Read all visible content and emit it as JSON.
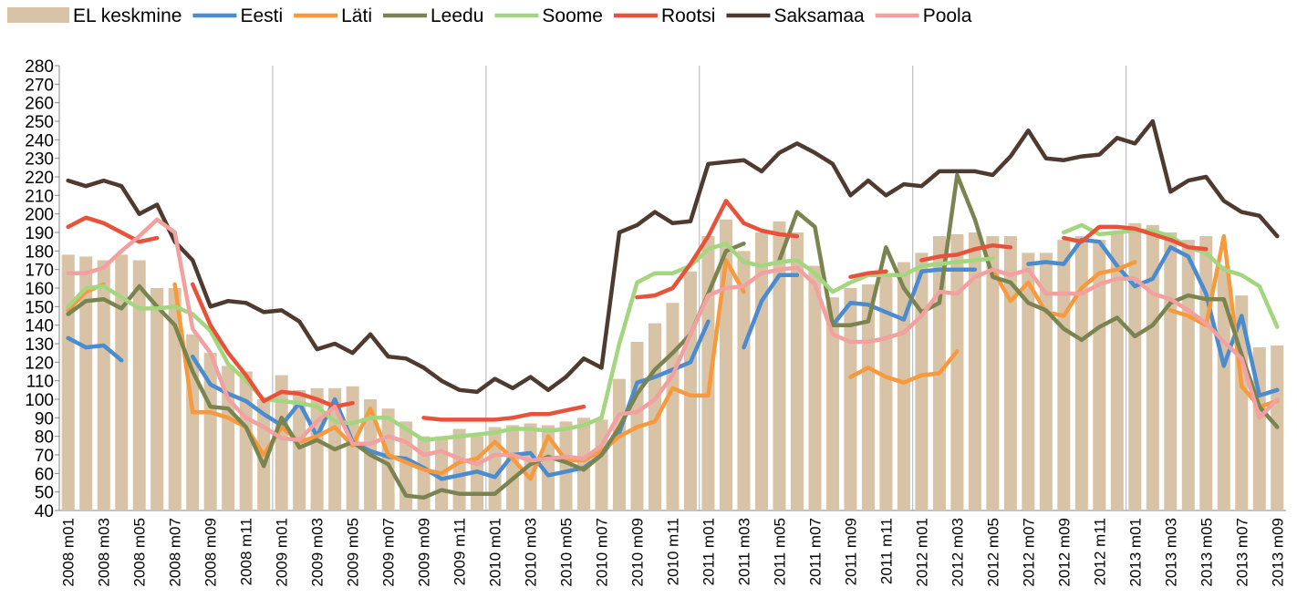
{
  "chart_data": {
    "type": "combo",
    "categories": [
      "2008 m01",
      null,
      "2008 m03",
      null,
      "2008 m05",
      null,
      "2008 m07",
      null,
      "2008 m09",
      null,
      "2008 m11",
      null,
      "2009 m01",
      null,
      "2009 m03",
      null,
      "2009 m05",
      null,
      "2009 m07",
      null,
      "2009 m09",
      null,
      "2009 m11",
      null,
      "2010 m01",
      null,
      "2010 m03",
      null,
      "2010 m05",
      null,
      "2010 m07",
      null,
      "2010 m09",
      null,
      "2010 m11",
      null,
      "2011 m01",
      null,
      "2011 m03",
      null,
      "2011 m05",
      null,
      "2011 m07",
      null,
      "2011 m09",
      null,
      "2011 m11",
      null,
      "2012 m01",
      null,
      "2012 m03",
      null,
      "2012 m05",
      null,
      "2012 m07",
      null,
      "2012 m09",
      null,
      "2012 m11",
      null,
      "2013 m01",
      null,
      "2013 m03",
      null,
      "2013 m05",
      null,
      "2013 m07",
      null,
      "2013 m09"
    ],
    "ylim": [
      40,
      280
    ],
    "yticks": [
      40,
      50,
      60,
      70,
      80,
      90,
      100,
      110,
      120,
      130,
      140,
      150,
      160,
      170,
      180,
      190,
      200,
      210,
      220,
      230,
      240,
      250,
      260,
      270,
      280
    ],
    "series": [
      {
        "name": "EL keskmine",
        "type": "bar",
        "color": "#d8c3a6",
        "values": [
          178,
          177,
          175,
          178,
          175,
          160,
          160,
          135,
          125,
          118,
          115,
          100,
          113,
          105,
          106,
          106,
          107,
          100,
          95,
          88,
          80,
          80,
          84,
          80,
          85,
          86,
          87,
          86,
          88,
          90,
          89,
          111,
          131,
          141,
          152,
          169,
          188,
          197,
          180,
          190,
          196,
          190,
          172,
          155,
          160,
          162,
          166,
          174,
          179,
          188,
          189,
          190,
          188,
          188,
          179,
          179,
          186,
          188,
          186,
          190,
          195,
          194,
          190,
          186,
          188,
          172,
          156,
          128,
          129
        ]
      },
      {
        "name": "Eesti",
        "type": "line",
        "color": "#4a8ccf",
        "values": [
          133,
          128,
          129,
          121,
          null,
          null,
          null,
          123,
          108,
          103,
          99,
          92,
          86,
          98,
          80,
          100,
          77,
          72,
          69,
          68,
          63,
          57,
          59,
          61,
          58,
          70,
          71,
          59,
          61,
          63,
          70,
          82,
          109,
          112,
          116,
          120,
          142,
          null,
          128,
          153,
          167,
          167,
          null,
          140,
          152,
          151,
          147,
          143,
          169,
          170,
          170,
          170,
          null,
          null,
          173,
          174,
          173,
          186,
          185,
          172,
          161,
          165,
          182,
          177,
          157,
          118,
          145,
          102,
          105
        ]
      },
      {
        "name": "Läti",
        "type": "line",
        "color": "#f79a3e",
        "values": [
          148,
          158,
          162,
          null,
          null,
          null,
          162,
          93,
          93,
          90,
          85,
          70,
          85,
          77,
          80,
          85,
          75,
          95,
          70,
          66,
          62,
          60,
          66,
          68,
          77,
          68,
          57,
          80,
          67,
          67,
          72,
          80,
          85,
          88,
          106,
          102,
          102,
          175,
          158,
          null,
          null,
          null,
          null,
          null,
          112,
          117,
          112,
          109,
          113,
          114,
          126,
          null,
          170,
          153,
          163,
          147,
          145,
          160,
          168,
          170,
          174,
          null,
          148,
          145,
          140,
          188,
          107,
          96,
          99
        ]
      },
      {
        "name": "Leedu",
        "type": "line",
        "color": "#7a8450",
        "values": [
          146,
          153,
          154,
          149,
          161,
          150,
          140,
          115,
          96,
          95,
          85,
          64,
          90,
          74,
          78,
          73,
          77,
          70,
          65,
          48,
          47,
          51,
          49,
          49,
          49,
          57,
          65,
          69,
          66,
          62,
          70,
          85,
          103,
          116,
          125,
          135,
          157,
          180,
          184,
          null,
          175,
          201,
          193,
          140,
          140,
          142,
          182,
          160,
          147,
          152,
          221,
          197,
          166,
          163,
          152,
          148,
          138,
          132,
          139,
          144,
          134,
          140,
          152,
          156,
          154,
          154,
          124,
          96,
          85
        ]
      },
      {
        "name": "Soome",
        "type": "line",
        "color": "#a3d67e",
        "values": [
          150,
          160,
          161,
          155,
          149,
          149,
          150,
          146,
          137,
          119,
          110,
          100,
          99,
          98,
          96,
          88,
          87,
          90,
          90,
          84,
          78,
          79,
          80,
          81,
          82,
          84,
          84,
          83,
          84,
          86,
          90,
          130,
          163,
          168,
          168,
          172,
          181,
          184,
          174,
          172,
          174,
          175,
          168,
          158,
          163,
          167,
          167,
          167,
          172,
          173,
          174,
          175,
          176,
          null,
          null,
          null,
          190,
          194,
          189,
          190,
          191,
          191,
          188,
          182,
          179,
          170,
          167,
          161,
          139
        ]
      },
      {
        "name": "Rootsi",
        "type": "line",
        "color": "#e8523b",
        "values": [
          193,
          198,
          195,
          190,
          185,
          187,
          null,
          162,
          140,
          125,
          113,
          99,
          104,
          103,
          100,
          96,
          98,
          null,
          null,
          null,
          90,
          89,
          89,
          89,
          89,
          90,
          92,
          92,
          94,
          96,
          null,
          null,
          155,
          156,
          160,
          173,
          188,
          207,
          195,
          191,
          189,
          188,
          null,
          null,
          166,
          168,
          169,
          null,
          175,
          177,
          178,
          181,
          183,
          182,
          null,
          null,
          187,
          185,
          193,
          193,
          192,
          189,
          186,
          182,
          181,
          null,
          null,
          null,
          null
        ]
      },
      {
        "name": "Saksamaa",
        "type": "line",
        "color": "#4e3a2e",
        "values": [
          218,
          215,
          218,
          215,
          200,
          205,
          185,
          175,
          150,
          153,
          152,
          147,
          148,
          142,
          127,
          130,
          125,
          135,
          123,
          122,
          117,
          110,
          105,
          104,
          111,
          106,
          112,
          105,
          112,
          122,
          117,
          190,
          194,
          201,
          195,
          196,
          227,
          228,
          229,
          223,
          233,
          238,
          233,
          227,
          210,
          218,
          210,
          216,
          215,
          223,
          223,
          223,
          221,
          231,
          245,
          230,
          229,
          231,
          232,
          241,
          238,
          250,
          212,
          218,
          220,
          207,
          201,
          199,
          188
        ]
      },
      {
        "name": "Poola",
        "type": "line",
        "color": "#f2a0a0",
        "values": [
          168,
          168,
          171,
          180,
          188,
          197,
          190,
          138,
          125,
          100,
          90,
          85,
          79,
          78,
          88,
          96,
          76,
          76,
          80,
          77,
          70,
          72,
          68,
          65,
          70,
          70,
          67,
          68,
          69,
          68,
          75,
          92,
          93,
          100,
          113,
          135,
          156,
          160,
          161,
          168,
          170,
          171,
          162,
          135,
          131,
          131,
          133,
          136,
          145,
          158,
          157,
          166,
          170,
          167,
          170,
          157,
          157,
          157,
          162,
          165,
          165,
          157,
          154,
          148,
          141,
          131,
          122,
          90,
          100
        ]
      }
    ]
  }
}
